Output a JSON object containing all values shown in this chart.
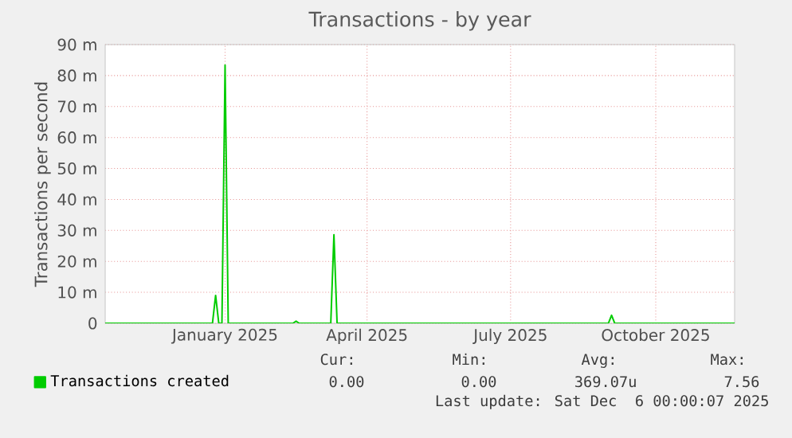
{
  "chart_data": {
    "type": "line",
    "title": "Transactions - by year",
    "ylabel": "Transactions per second",
    "x": [
      "2024-11-01",
      "2025-01-08",
      "2025-01-10",
      "2025-01-12",
      "2025-01-14",
      "2025-01-16",
      "2025-01-18",
      "2025-02-28",
      "2025-03-02",
      "2025-03-04",
      "2025-03-24",
      "2025-03-26",
      "2025-03-28",
      "2025-09-16",
      "2025-09-18",
      "2025-09-20",
      "2025-12-05"
    ],
    "series": [
      {
        "name": "Transactions created",
        "color": "#00cc00",
        "values": [
          0,
          0,
          9,
          0,
          0,
          83.4,
          0,
          0,
          0.7,
          0,
          0,
          28.6,
          0,
          0,
          2.6,
          0,
          0
        ]
      }
    ],
    "xlim": [
      "2024-11-01",
      "2025-12-05"
    ],
    "xticks": [
      {
        "value": "2025-01-16",
        "label": "January 2025"
      },
      {
        "value": "2025-04-16",
        "label": "April 2025"
      },
      {
        "value": "2025-07-16",
        "label": "July 2025"
      },
      {
        "value": "2025-10-16",
        "label": "October 2025"
      }
    ],
    "ylim": [
      0,
      90
    ],
    "yticks": [
      0,
      {
        "value": 10,
        "label": "10 m"
      },
      {
        "value": 20,
        "label": "20 m"
      },
      {
        "value": 30,
        "label": "30 m"
      },
      {
        "value": 40,
        "label": "40 m"
      },
      {
        "value": 50,
        "label": "50 m"
      },
      {
        "value": 60,
        "label": "60 m"
      },
      {
        "value": 70,
        "label": "70 m"
      },
      {
        "value": 80,
        "label": "80 m"
      },
      {
        "value": 90,
        "label": "90 m"
      }
    ],
    "grid": true,
    "legend": "bottom",
    "line_style": "solid",
    "annotations": [
      "Cur:",
      "Min:",
      "Avg:",
      "Max:",
      "0.00",
      "0.00",
      "369.07u",
      "7.56",
      "Last update: Sat Dec  6 00:00:07 2025"
    ]
  }
}
